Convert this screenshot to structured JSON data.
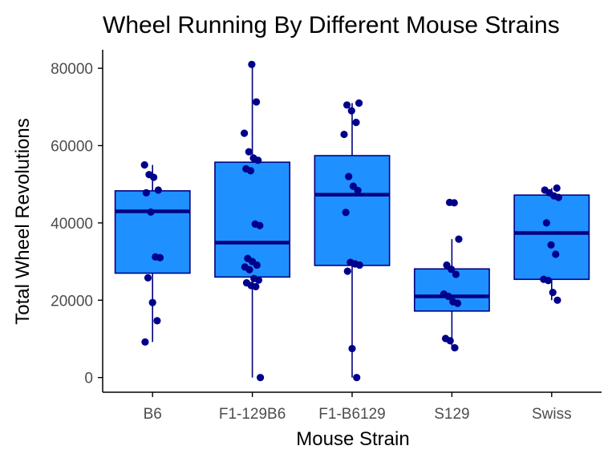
{
  "chart_data": {
    "type": "box",
    "title": "Wheel Running By Different Mouse Strains",
    "xlabel": "Mouse Strain",
    "ylabel": "Total Wheel Revolutions",
    "ylim": [
      -3800,
      84800
    ],
    "yticks": [
      0,
      20000,
      40000,
      60000,
      80000
    ],
    "ytick_labels": [
      "0",
      "20000",
      "40000",
      "60000",
      "80000"
    ],
    "categories": [
      "B6",
      "F1-129B6",
      "F1-B6129",
      "S129",
      "Swiss"
    ],
    "grid": false,
    "legend": "none",
    "boxes": [
      {
        "category": "B6",
        "min": 9200,
        "q1": 27000,
        "median": 43000,
        "q3": 48300,
        "max": 55000
      },
      {
        "category": "F1-129B6",
        "min": 0,
        "q1": 26000,
        "median": 34900,
        "q3": 55700,
        "max": 81000
      },
      {
        "category": "F1-B6129",
        "min": 0,
        "q1": 29000,
        "median": 47300,
        "q3": 57400,
        "max": 71000
      },
      {
        "category": "S129",
        "min": 7700,
        "q1": 17200,
        "median": 21000,
        "q3": 28100,
        "max": 35800
      },
      {
        "category": "Swiss",
        "min": 20000,
        "q1": 25400,
        "median": 37400,
        "q3": 47200,
        "max": 49000
      }
    ],
    "points": [
      [
        55000,
        52500,
        51800,
        48500,
        47800,
        42800,
        31200,
        31000,
        25800,
        19400,
        14700,
        9200
      ],
      [
        81000,
        71300,
        63200,
        58400,
        56800,
        56200,
        54000,
        53500,
        39700,
        39300,
        30800,
        30000,
        29100,
        28600,
        27900,
        25600,
        25200,
        24500,
        23800,
        23500,
        0
      ],
      [
        71000,
        70500,
        69000,
        66000,
        62900,
        52000,
        49500,
        48400,
        42700,
        29800,
        29400,
        29100,
        27500,
        7500,
        0
      ],
      [
        45300,
        45200,
        35800,
        29100,
        28000,
        26700,
        21600,
        21000,
        19600,
        19200,
        10100,
        9500,
        7700
      ],
      [
        49000,
        48500,
        47800,
        47000,
        46600,
        40000,
        34300,
        31900,
        25400,
        25100,
        22000,
        20000
      ]
    ],
    "colors": {
      "box_fill": "#1e90ff",
      "box_stroke": "#00007f",
      "point": "#00008b",
      "axis": "#000000"
    }
  }
}
